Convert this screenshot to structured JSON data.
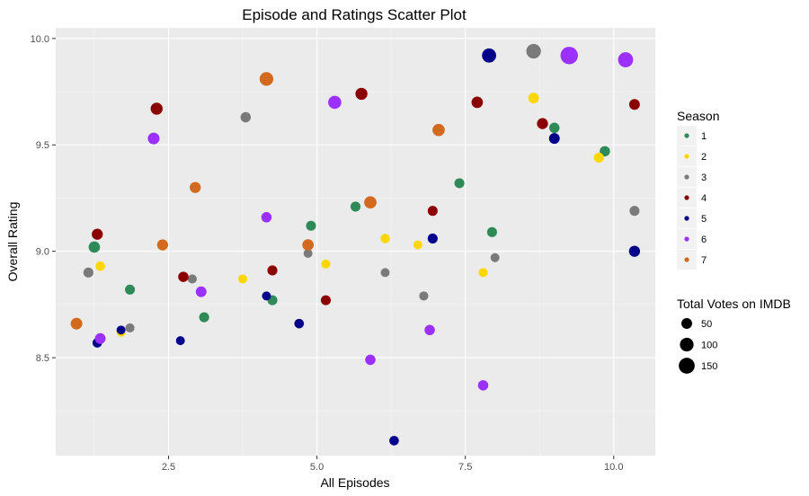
{
  "chart_data": {
    "type": "scatter",
    "title": "Episode and Ratings Scatter Plot",
    "xlabel": "All Episodes",
    "ylabel": "Overall Rating",
    "xlim": [
      0.6,
      10.7
    ],
    "ylim": [
      8.04,
      10.05
    ],
    "x_ticks": [
      2.5,
      5.0,
      7.5,
      10.0
    ],
    "x_tick_labels": [
      "2.5",
      "5.0",
      "7.5",
      "10.0"
    ],
    "y_ticks": [
      8.5,
      9.0,
      9.5,
      10.0
    ],
    "y_tick_labels": [
      "8.5",
      "9.0",
      "9.5",
      "10.0"
    ],
    "grid": true,
    "legend_placement": "right",
    "color_legend": {
      "title": "Season",
      "entries": [
        {
          "label": "1",
          "color": "#2e8b57"
        },
        {
          "label": "2",
          "color": "#ffd700"
        },
        {
          "label": "3",
          "color": "#7a7a7a"
        },
        {
          "label": "4",
          "color": "#8b0000"
        },
        {
          "label": "5",
          "color": "#00008b"
        },
        {
          "label": "6",
          "color": "#9b30ff"
        },
        {
          "label": "7",
          "color": "#d2691e"
        }
      ]
    },
    "size_legend": {
      "title": "Total Votes on IMDB",
      "entries": [
        {
          "label": "50",
          "value": 50
        },
        {
          "label": "100",
          "value": 100
        },
        {
          "label": "150",
          "value": 150
        }
      ]
    },
    "series": [
      {
        "name": "1",
        "points": [
          {
            "x": 1.25,
            "y": 9.02,
            "votes": 60
          },
          {
            "x": 1.85,
            "y": 8.82,
            "votes": 40
          },
          {
            "x": 3.1,
            "y": 8.69,
            "votes": 40
          },
          {
            "x": 4.25,
            "y": 8.77,
            "votes": 40
          },
          {
            "x": 4.9,
            "y": 9.12,
            "votes": 40
          },
          {
            "x": 5.65,
            "y": 9.21,
            "votes": 40
          },
          {
            "x": 7.4,
            "y": 9.32,
            "votes": 40
          },
          {
            "x": 7.95,
            "y": 9.09,
            "votes": 40
          },
          {
            "x": 9.0,
            "y": 9.58,
            "votes": 45
          },
          {
            "x": 9.85,
            "y": 9.47,
            "votes": 45
          }
        ]
      },
      {
        "name": "2",
        "points": [
          {
            "x": 1.35,
            "y": 8.93,
            "votes": 35
          },
          {
            "x": 1.7,
            "y": 8.62,
            "votes": 30
          },
          {
            "x": 3.75,
            "y": 8.87,
            "votes": 28
          },
          {
            "x": 5.15,
            "y": 8.94,
            "votes": 30
          },
          {
            "x": 6.15,
            "y": 9.06,
            "votes": 32
          },
          {
            "x": 6.7,
            "y": 9.03,
            "votes": 28
          },
          {
            "x": 7.8,
            "y": 8.9,
            "votes": 30
          },
          {
            "x": 8.65,
            "y": 9.72,
            "votes": 50
          },
          {
            "x": 9.75,
            "y": 9.44,
            "votes": 40
          }
        ]
      },
      {
        "name": "3",
        "points": [
          {
            "x": 1.15,
            "y": 8.9,
            "votes": 40
          },
          {
            "x": 1.85,
            "y": 8.64,
            "votes": 30
          },
          {
            "x": 2.9,
            "y": 8.87,
            "votes": 30
          },
          {
            "x": 3.8,
            "y": 9.63,
            "votes": 45
          },
          {
            "x": 4.85,
            "y": 8.99,
            "votes": 28
          },
          {
            "x": 6.15,
            "y": 8.9,
            "votes": 28
          },
          {
            "x": 6.8,
            "y": 8.79,
            "votes": 30
          },
          {
            "x": 8.0,
            "y": 8.97,
            "votes": 28
          },
          {
            "x": 8.65,
            "y": 9.94,
            "votes": 120
          },
          {
            "x": 10.35,
            "y": 9.19,
            "votes": 40
          }
        ]
      },
      {
        "name": "4",
        "points": [
          {
            "x": 1.3,
            "y": 9.08,
            "votes": 55
          },
          {
            "x": 2.3,
            "y": 9.67,
            "votes": 70
          },
          {
            "x": 2.75,
            "y": 8.88,
            "votes": 45
          },
          {
            "x": 4.25,
            "y": 8.91,
            "votes": 40
          },
          {
            "x": 5.15,
            "y": 8.77,
            "votes": 40
          },
          {
            "x": 5.75,
            "y": 9.74,
            "votes": 70
          },
          {
            "x": 6.95,
            "y": 9.19,
            "votes": 40
          },
          {
            "x": 7.7,
            "y": 9.7,
            "votes": 60
          },
          {
            "x": 8.8,
            "y": 9.6,
            "votes": 55
          },
          {
            "x": 10.35,
            "y": 9.69,
            "votes": 50
          }
        ]
      },
      {
        "name": "5",
        "points": [
          {
            "x": 1.3,
            "y": 8.57,
            "votes": 35
          },
          {
            "x": 1.7,
            "y": 8.63,
            "votes": 28
          },
          {
            "x": 2.7,
            "y": 8.58,
            "votes": 28
          },
          {
            "x": 4.15,
            "y": 8.79,
            "votes": 28
          },
          {
            "x": 4.7,
            "y": 8.66,
            "votes": 35
          },
          {
            "x": 6.3,
            "y": 8.11,
            "votes": 35
          },
          {
            "x": 6.95,
            "y": 9.06,
            "votes": 40
          },
          {
            "x": 7.9,
            "y": 9.92,
            "votes": 110
          },
          {
            "x": 9.0,
            "y": 9.53,
            "votes": 50
          },
          {
            "x": 10.35,
            "y": 9.0,
            "votes": 55
          }
        ]
      },
      {
        "name": "6",
        "points": [
          {
            "x": 1.35,
            "y": 8.59,
            "votes": 50
          },
          {
            "x": 2.25,
            "y": 9.53,
            "votes": 65
          },
          {
            "x": 3.05,
            "y": 8.81,
            "votes": 50
          },
          {
            "x": 4.15,
            "y": 9.16,
            "votes": 45
          },
          {
            "x": 5.3,
            "y": 9.7,
            "votes": 90
          },
          {
            "x": 5.9,
            "y": 8.49,
            "votes": 45
          },
          {
            "x": 6.9,
            "y": 8.63,
            "votes": 45
          },
          {
            "x": 7.8,
            "y": 8.37,
            "votes": 45
          },
          {
            "x": 9.25,
            "y": 9.92,
            "votes": 190
          },
          {
            "x": 10.2,
            "y": 9.9,
            "votes": 130
          }
        ]
      },
      {
        "name": "7",
        "points": [
          {
            "x": 0.95,
            "y": 8.66,
            "votes": 65
          },
          {
            "x": 2.4,
            "y": 9.03,
            "votes": 55
          },
          {
            "x": 2.95,
            "y": 9.3,
            "votes": 55
          },
          {
            "x": 4.15,
            "y": 9.81,
            "votes": 100
          },
          {
            "x": 4.85,
            "y": 9.03,
            "votes": 60
          },
          {
            "x": 5.9,
            "y": 9.23,
            "votes": 75
          },
          {
            "x": 7.05,
            "y": 9.57,
            "votes": 75
          }
        ]
      }
    ]
  }
}
